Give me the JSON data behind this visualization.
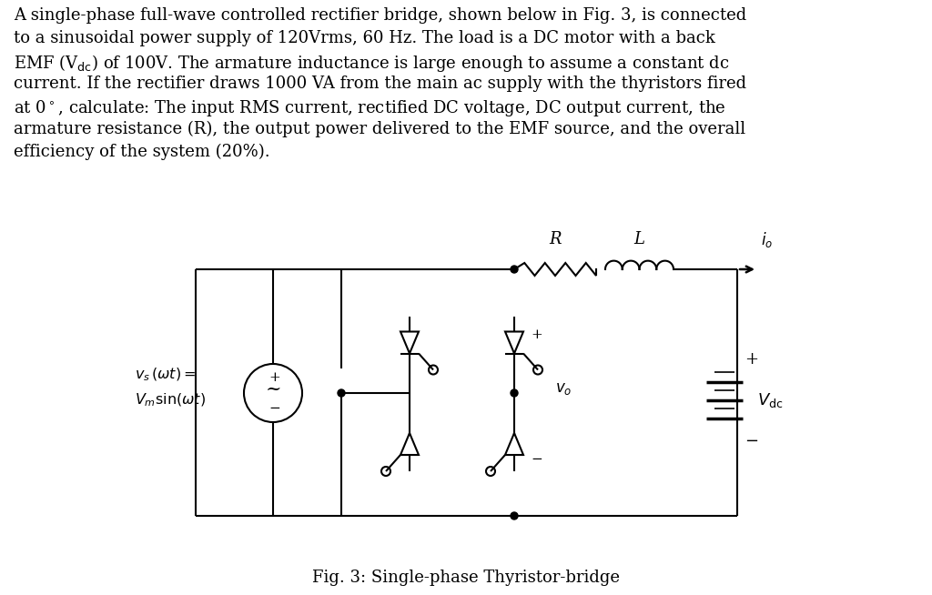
{
  "bg_color": "#ffffff",
  "text_color": "#000000",
  "fig_caption": "Fig. 3: Single-phase Thyristor-bridge",
  "fig_width": 10.24,
  "fig_height": 6.54,
  "dpi": 100,
  "text_lines": [
    "A single-phase full-wave controlled rectifier bridge, shown below in Fig. 3, is connected",
    "to a sinusoidal power supply of 120Vrms, 60 Hz. The load is a DC motor with a back",
    "EMF (V$_{\\rm dc}$) of 100V. The armature inductance is large enough to assume a constant dc",
    "current. If the rectifier draws 1000 VA from the main ac supply with the thyristors fired",
    "at 0\\u00b0, calculate: The input RMS current, rectified DC voltage, DC output current, the",
    "armature resistance (R), the output power delivered to the EMF source, and the overall",
    "efficiency of the system (20%)."
  ]
}
